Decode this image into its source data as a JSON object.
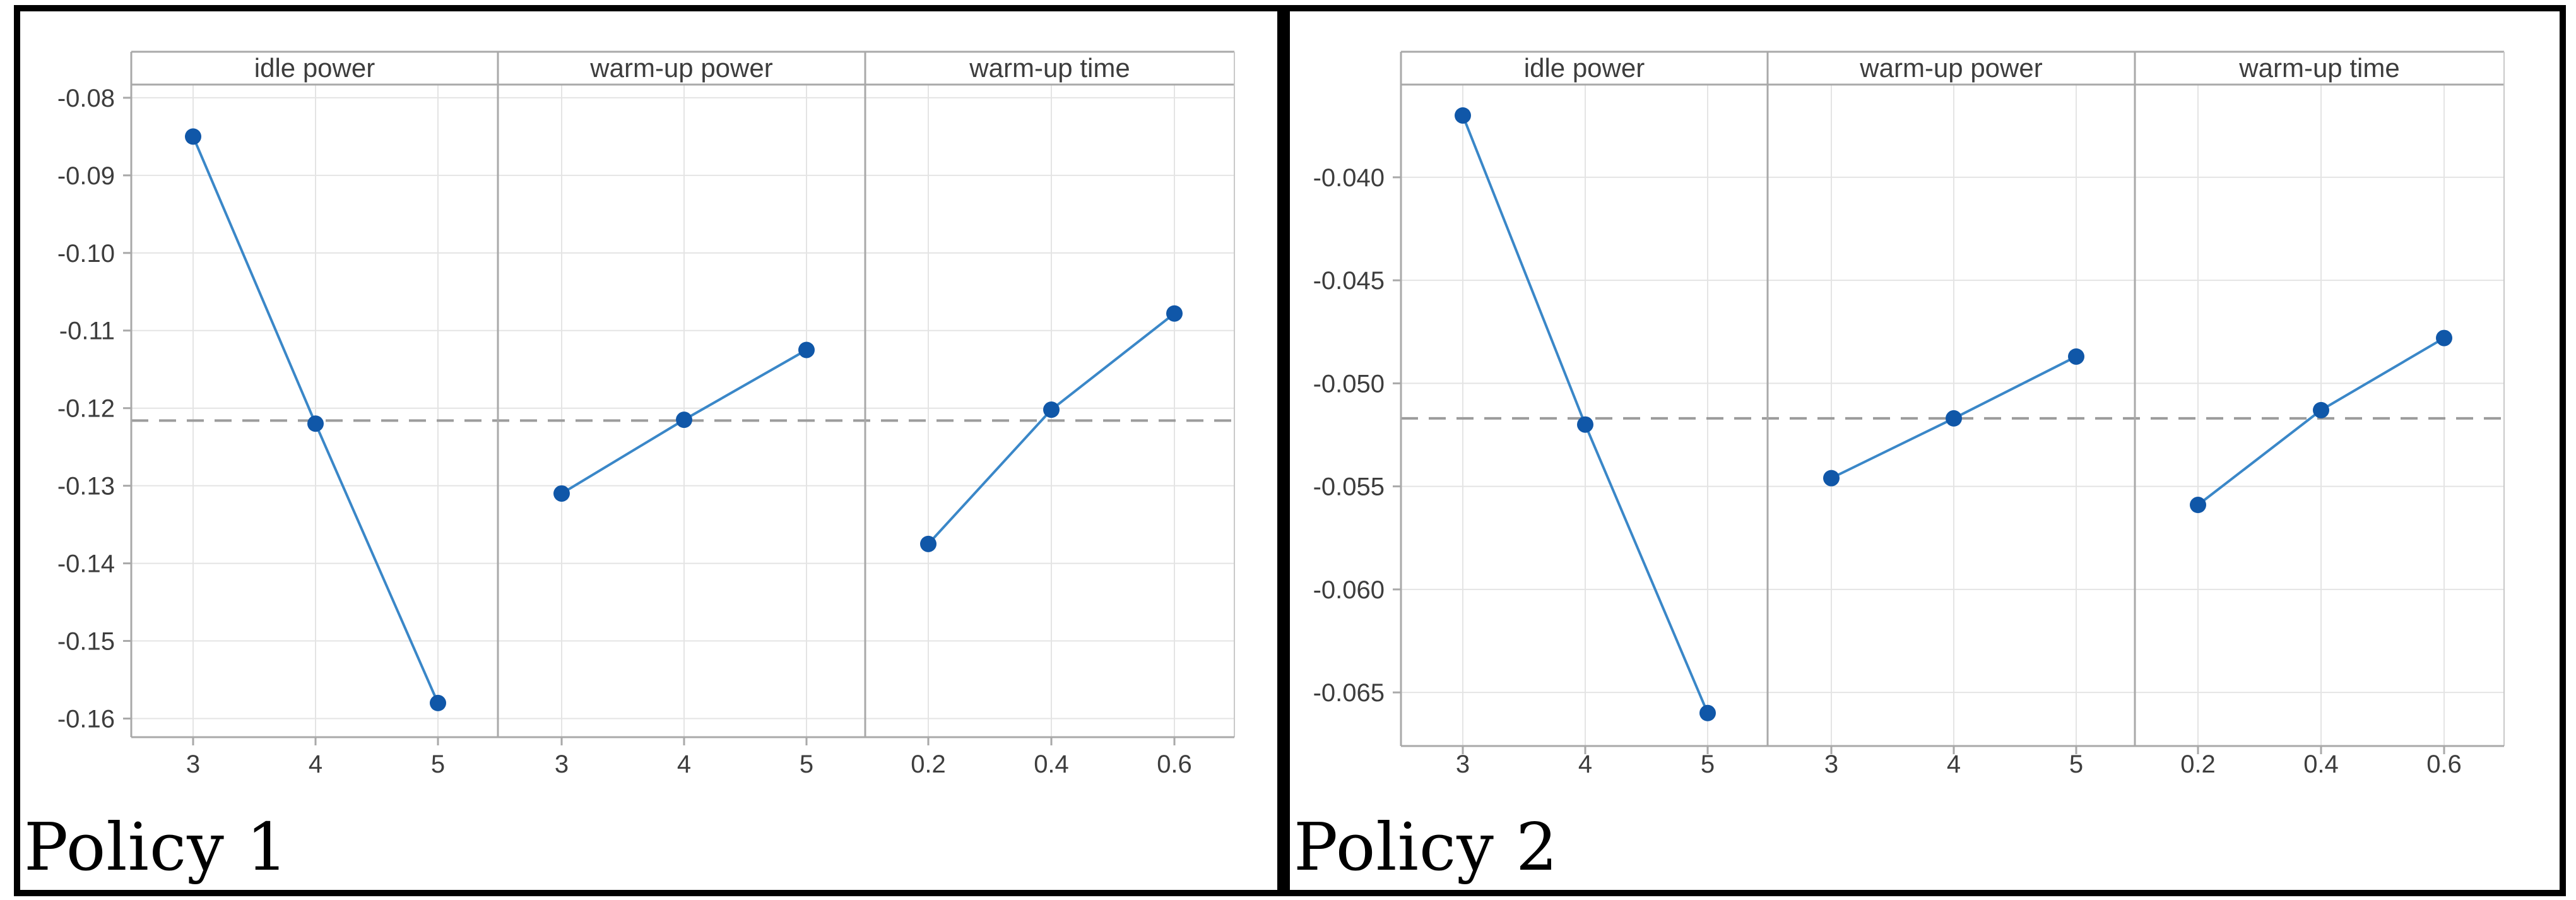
{
  "page": {
    "background": "#ffffff"
  },
  "colors": {
    "figure_border": "#000000",
    "axis": "#a9a9a9",
    "plot_right_edge": "#c9c9c9",
    "gridline": "#e4e4e4",
    "mean_line": "#9c9c9c",
    "series_line": "#3a87c8",
    "marker": "#1057a8",
    "tick_text": "#3d3d3d",
    "title_text": "#3d3d3d",
    "caption_text": "#000000"
  },
  "chart_data": [
    {
      "type": "line",
      "chart_kind": "main-effects-plot",
      "label": "Policy 1",
      "legend": "none",
      "grid": true,
      "mean_line": -0.1216,
      "ylim": [
        -0.1624,
        -0.0783
      ],
      "y_tick_values": [
        -0.08,
        -0.09,
        -0.1,
        -0.11,
        -0.12,
        -0.13,
        -0.14,
        -0.15,
        -0.16
      ],
      "y_tick_labels": [
        "-0.08",
        "-0.09",
        "-0.10",
        "-0.11",
        "-0.12",
        "-0.13",
        "-0.14",
        "-0.15",
        "-0.16"
      ],
      "panels": [
        {
          "title": "idle power",
          "x_tick_labels": [
            "3",
            "4",
            "5"
          ],
          "x_values": [
            3,
            4,
            5
          ],
          "values": [
            -0.085,
            -0.122,
            -0.158
          ]
        },
        {
          "title": "warm-up power",
          "x_tick_labels": [
            "3",
            "4",
            "5"
          ],
          "x_values": [
            3,
            4,
            5
          ],
          "values": [
            -0.131,
            -0.1215,
            -0.1125
          ]
        },
        {
          "title": "warm-up time",
          "x_tick_labels": [
            "0.2",
            "0.4",
            "0.6"
          ],
          "x_values": [
            0.2,
            0.4,
            0.6
          ],
          "values": [
            -0.1375,
            -0.1202,
            -0.1078
          ]
        }
      ]
    },
    {
      "type": "line",
      "chart_kind": "main-effects-plot",
      "label": "Policy 2",
      "legend": "none",
      "grid": true,
      "mean_line": -0.0517,
      "ylim": [
        -0.0676,
        -0.0355
      ],
      "y_tick_values": [
        -0.04,
        -0.045,
        -0.05,
        -0.055,
        -0.06,
        -0.065
      ],
      "y_tick_labels": [
        "-0.040",
        "-0.045",
        "-0.050",
        "-0.055",
        "-0.060",
        "-0.065"
      ],
      "panels": [
        {
          "title": "idle power",
          "x_tick_labels": [
            "3",
            "4",
            "5"
          ],
          "x_values": [
            3,
            4,
            5
          ],
          "values": [
            -0.037,
            -0.052,
            -0.066
          ]
        },
        {
          "title": "warm-up power",
          "x_tick_labels": [
            "3",
            "4",
            "5"
          ],
          "x_values": [
            3,
            4,
            5
          ],
          "values": [
            -0.0546,
            -0.0517,
            -0.0487
          ]
        },
        {
          "title": "warm-up time",
          "x_tick_labels": [
            "0.2",
            "0.4",
            "0.6"
          ],
          "x_values": [
            0.2,
            0.4,
            0.6
          ],
          "values": [
            -0.0559,
            -0.0513,
            -0.0478
          ]
        }
      ]
    }
  ]
}
